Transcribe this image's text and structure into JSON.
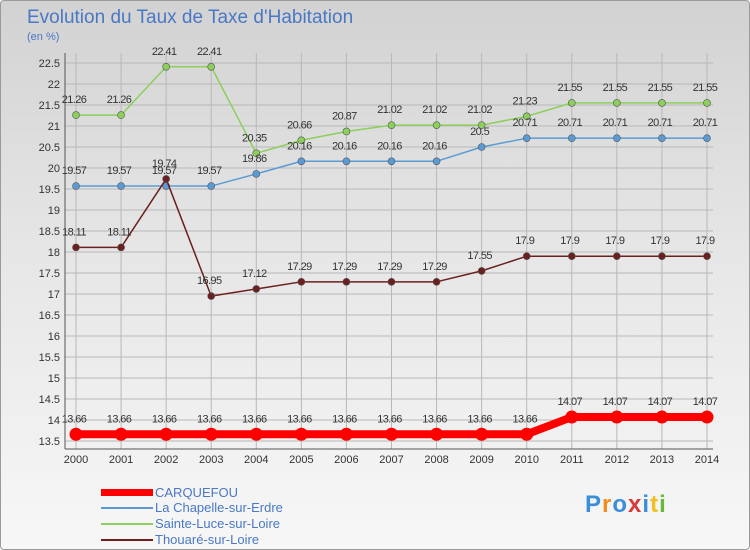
{
  "header": {
    "title": "Evolution du Taux de Taxe d'Habitation",
    "subtitle": "(en %)"
  },
  "logo": {
    "text": "Proxiti",
    "letter_colors": [
      "#3a8fd8",
      "#f28c1e",
      "#3a8fd8",
      "#d83a3a",
      "#3a8fd8",
      "#f2c01e",
      "#6ab83a"
    ]
  },
  "chart_data": {
    "type": "line",
    "x": [
      "2000",
      "2001",
      "2002",
      "2003",
      "2004",
      "2005",
      "2006",
      "2007",
      "2008",
      "2009",
      "2010",
      "2011",
      "2012",
      "2013",
      "2014"
    ],
    "ylim": [
      13.5,
      22.5
    ],
    "yticks": [
      "13.5",
      "14",
      "14.5",
      "15",
      "15.5",
      "16",
      "16.5",
      "17",
      "17.5",
      "18",
      "18.5",
      "19",
      "19.5",
      "20",
      "20.5",
      "21",
      "21.5",
      "22",
      "22.5"
    ],
    "grid": true,
    "legend_position": "bottom-left",
    "series": [
      {
        "name": "CARQUEFOU",
        "color": "#ff0000",
        "values": [
          13.66,
          13.66,
          13.66,
          13.66,
          13.66,
          13.66,
          13.66,
          13.66,
          13.66,
          13.66,
          13.66,
          14.07,
          14.07,
          14.07,
          14.07
        ],
        "labels": [
          "13.66",
          "13.66",
          "13.66",
          "13.66",
          "13.66",
          "13.66",
          "13.66",
          "13.66",
          "13.66",
          "13.66",
          "13.66",
          "14.07",
          "14.07",
          "14.07",
          "14.07"
        ]
      },
      {
        "name": "La Chapelle-sur-Erdre",
        "color": "#5b9bd5",
        "values": [
          19.57,
          19.57,
          19.57,
          19.57,
          19.86,
          20.16,
          20.16,
          20.16,
          20.16,
          20.5,
          20.71,
          20.71,
          20.71,
          20.71,
          20.71
        ],
        "labels": [
          "19.57",
          "19.57",
          "19.57",
          "19.57",
          "19.86",
          "20.16",
          "20.16",
          "20.16",
          "20.16",
          "20.5",
          "20.71",
          "20.71",
          "20.71",
          "20.71",
          "20.71"
        ]
      },
      {
        "name": "Sainte-Luce-sur-Loire",
        "color": "#8ccf5a",
        "values": [
          21.26,
          21.26,
          22.41,
          22.41,
          20.35,
          20.66,
          20.87,
          21.02,
          21.02,
          21.02,
          21.23,
          21.55,
          21.55,
          21.55,
          21.55
        ],
        "labels": [
          "21.26",
          "21.26",
          "22.41",
          "22.41",
          "20.35",
          "20.66",
          "20.87",
          "21.02",
          "21.02",
          "21.02",
          "21.23",
          "21.55",
          "21.55",
          "21.55",
          "21.55"
        ]
      },
      {
        "name": "Thouaré-sur-Loire",
        "color": "#6b1f1f",
        "values": [
          18.11,
          18.11,
          19.74,
          16.95,
          17.12,
          17.29,
          17.29,
          17.29,
          17.29,
          17.55,
          17.9,
          17.9,
          17.9,
          17.9,
          17.9
        ],
        "labels": [
          "18.11",
          "18.11",
          "19.74",
          "16.95",
          "17.12",
          "17.29",
          "17.29",
          "17.29",
          "17.29",
          "17.55",
          "17.9",
          "17.9",
          "17.9",
          "17.9",
          "17.9"
        ]
      }
    ]
  }
}
